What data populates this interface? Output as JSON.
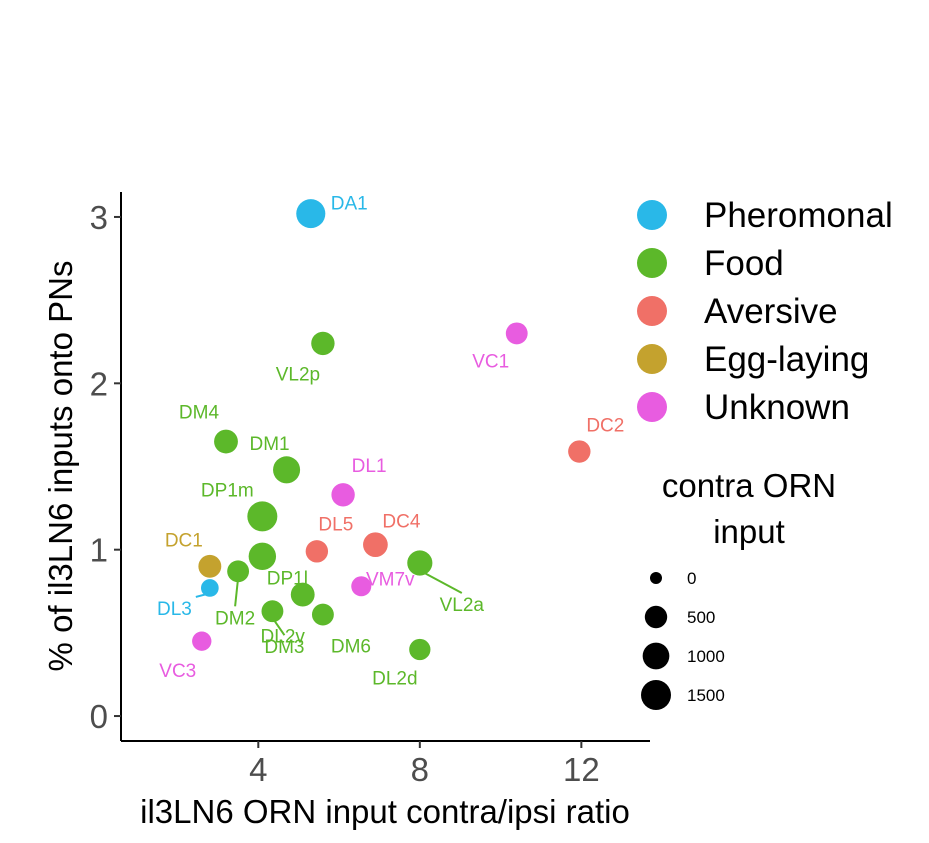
{
  "chart_data": {
    "type": "scatter",
    "title": "",
    "xlabel": "il3LN6 ORN input contra/ipsi ratio",
    "ylabel": "% of il3LN6 inputs onto PNs",
    "xlim": [
      0.6,
      13.7
    ],
    "ylim": [
      -0.15,
      3.15
    ],
    "xticks": [
      4,
      8,
      12
    ],
    "yticks": [
      0,
      1,
      2,
      3
    ],
    "grid": false,
    "legend_position": "right",
    "color_legend": [
      {
        "name": "Pheromonal",
        "color": "#29b8e8"
      },
      {
        "name": "Food",
        "color": "#5cb82a"
      },
      {
        "name": "Aversive",
        "color": "#f07067"
      },
      {
        "name": "Egg-laying",
        "color": "#c4a22e"
      },
      {
        "name": "Unknown",
        "color": "#e85ce0"
      }
    ],
    "size_legend": {
      "title_lines": [
        "contra ORN",
        "input"
      ],
      "values": [
        0,
        500,
        1000,
        1500
      ],
      "labels": [
        "0",
        "500",
        "1000",
        "1500"
      ]
    },
    "points": [
      {
        "label": "DA1",
        "category": "Pheromonal",
        "x": 5.3,
        "y": 3.02,
        "size": 1350
      },
      {
        "label": "DL3",
        "category": "Pheromonal",
        "x": 2.8,
        "y": 0.77,
        "size": 150
      },
      {
        "label": "VL2p",
        "category": "Food",
        "x": 5.6,
        "y": 2.24,
        "size": 600
      },
      {
        "label": "DM4",
        "category": "Food",
        "x": 3.2,
        "y": 1.65,
        "size": 650
      },
      {
        "label": "DM1",
        "category": "Food",
        "x": 4.7,
        "y": 1.48,
        "size": 1050
      },
      {
        "label": "DP1m",
        "category": "Food",
        "x": 4.1,
        "y": 1.2,
        "size": 1500
      },
      {
        "label": "DP1l",
        "category": "Food",
        "x": 4.1,
        "y": 0.96,
        "size": 1100
      },
      {
        "label": "DL2v",
        "category": "Food",
        "x": 5.1,
        "y": 0.73,
        "size": 650
      },
      {
        "label": "DL2d",
        "category": "Food",
        "x": 8.0,
        "y": 0.4,
        "size": 400
      },
      {
        "label": "DM2",
        "category": "Food",
        "x": 3.5,
        "y": 0.87,
        "size": 450
      },
      {
        "label": "DM3",
        "category": "Food",
        "x": 4.35,
        "y": 0.63,
        "size": 450
      },
      {
        "label": "DM6",
        "category": "Food",
        "x": 5.6,
        "y": 0.61,
        "size": 450
      },
      {
        "label": "VL2a",
        "category": "Food",
        "x": 8.0,
        "y": 0.92,
        "size": 800
      },
      {
        "label": "DC2",
        "category": "Aversive",
        "x": 11.95,
        "y": 1.59,
        "size": 500
      },
      {
        "label": "DL5",
        "category": "Aversive",
        "x": 5.45,
        "y": 0.99,
        "size": 500
      },
      {
        "label": "DC4",
        "category": "Aversive",
        "x": 6.9,
        "y": 1.03,
        "size": 750
      },
      {
        "label": "DC1",
        "category": "Egg-laying",
        "x": 2.8,
        "y": 0.9,
        "size": 550
      },
      {
        "label": "VC1",
        "category": "Unknown",
        "x": 10.4,
        "y": 2.3,
        "size": 450
      },
      {
        "label": "DL1",
        "category": "Unknown",
        "x": 6.1,
        "y": 1.33,
        "size": 600
      },
      {
        "label": "VM7v",
        "category": "Unknown",
        "x": 6.55,
        "y": 0.78,
        "size": 300
      },
      {
        "label": "VC3",
        "category": "Unknown",
        "x": 2.6,
        "y": 0.45,
        "size": 250
      }
    ]
  }
}
